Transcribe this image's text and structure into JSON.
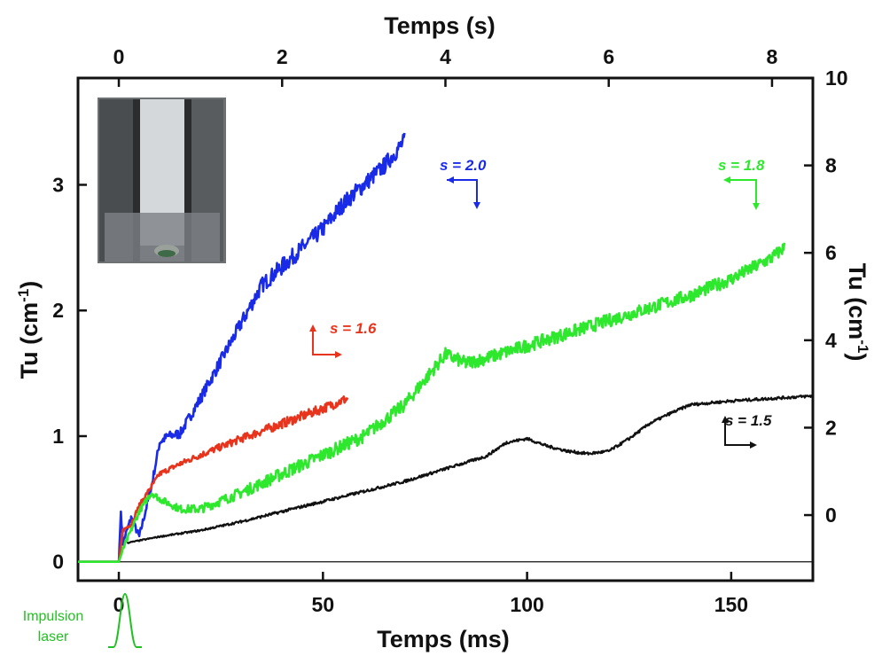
{
  "chart_data": {
    "type": "line",
    "title": "",
    "xlabel_bottom": "Temps (ms)",
    "xlabel_top": "Temps (s)",
    "ylabel_left": "Tu (cm",
    "ylabel_right": "Tu (cm",
    "ylabel_sup": "-1",
    "ylabel_close": ")",
    "xlim": [
      -10,
      170
    ],
    "ylim_left": [
      -0.15,
      3.85
    ],
    "ylim_right": [
      -1.5,
      10
    ],
    "x_ticks": [
      {
        "v": 0,
        "label": "0"
      },
      {
        "v": 50,
        "label": "50"
      },
      {
        "v": 100,
        "label": "100"
      },
      {
        "v": 150,
        "label": "150"
      }
    ],
    "x_top_ticks": [
      {
        "v": 0,
        "label": "0"
      },
      {
        "v": 2,
        "label": "2"
      },
      {
        "v": 4,
        "label": "4"
      },
      {
        "v": 6,
        "label": "6"
      },
      {
        "v": 8,
        "label": "8"
      }
    ],
    "x_top_scale_ms_per_s": 20,
    "y_left_ticks": [
      {
        "v": 0,
        "label": "0"
      },
      {
        "v": 1,
        "label": "1"
      },
      {
        "v": 2,
        "label": "2"
      },
      {
        "v": 3,
        "label": "3"
      }
    ],
    "y_right_ticks": [
      {
        "v": 0,
        "label": "0"
      },
      {
        "v": 2,
        "label": "2"
      },
      {
        "v": 4,
        "label": "4"
      },
      {
        "v": 6,
        "label": "6"
      },
      {
        "v": 8,
        "label": "8"
      },
      {
        "v": 10,
        "label": "10"
      }
    ],
    "grid": false,
    "series": [
      {
        "name": "s = 2.0",
        "color": "#1a2be8",
        "noise": 0.09,
        "x": [
          -10,
          0,
          0.5,
          1,
          3,
          5,
          8,
          10,
          12,
          15,
          20,
          25,
          30,
          35,
          40,
          45,
          50,
          55,
          60,
          65,
          70
        ],
        "y": [
          0,
          0,
          0.4,
          0.15,
          0.35,
          0.2,
          0.6,
          0.95,
          1.0,
          1.02,
          1.3,
          1.6,
          1.9,
          2.2,
          2.35,
          2.5,
          2.65,
          2.85,
          3.0,
          3.15,
          3.35
        ]
      },
      {
        "name": "s = 1.6",
        "color": "#e8341c",
        "noise": 0.05,
        "x": [
          -10,
          0,
          1,
          3,
          5,
          8,
          10,
          15,
          20,
          30,
          40,
          50,
          56
        ],
        "y": [
          0,
          0,
          0.25,
          0.3,
          0.45,
          0.6,
          0.7,
          0.78,
          0.85,
          0.98,
          1.1,
          1.22,
          1.3
        ]
      },
      {
        "name": "s = 1.8",
        "color": "#2ee82e",
        "noise": 0.07,
        "x": [
          -10,
          0,
          1,
          3,
          5,
          8,
          10,
          15,
          20,
          30,
          40,
          50,
          60,
          70,
          75,
          80,
          85,
          90,
          100,
          110,
          120,
          130,
          140,
          150,
          160,
          163
        ],
        "y": [
          0,
          0,
          0.1,
          0.25,
          0.4,
          0.55,
          0.5,
          0.42,
          0.42,
          0.55,
          0.7,
          0.85,
          1.0,
          1.25,
          1.45,
          1.65,
          1.58,
          1.62,
          1.72,
          1.82,
          1.92,
          2.02,
          2.12,
          2.25,
          2.42,
          2.5
        ]
      },
      {
        "name": "s = 1.5",
        "color": "#111111",
        "noise": 0.015,
        "x": [
          2,
          10,
          20,
          30,
          40,
          50,
          60,
          70,
          80,
          90,
          95,
          100,
          105,
          110,
          115,
          120,
          125,
          130,
          135,
          140,
          150,
          160,
          170
        ],
        "y": [
          0.15,
          0.2,
          0.25,
          0.32,
          0.4,
          0.48,
          0.56,
          0.64,
          0.74,
          0.84,
          0.95,
          0.98,
          0.92,
          0.88,
          0.86,
          0.88,
          0.98,
          1.1,
          1.18,
          1.25,
          1.28,
          1.3,
          1.32
        ]
      }
    ],
    "annotations": [
      {
        "text": "s = 2.0",
        "color": "#1a2be8"
      },
      {
        "text": "s = 1.6",
        "color": "#e8341c"
      },
      {
        "text": "s = 1.8",
        "color": "#2ee82e"
      },
      {
        "text": "s = 1.5",
        "color": "#111111"
      }
    ],
    "laser_label_line1": "Impulsion",
    "laser_label_line2": "laser",
    "laser_color": "#22c022"
  }
}
